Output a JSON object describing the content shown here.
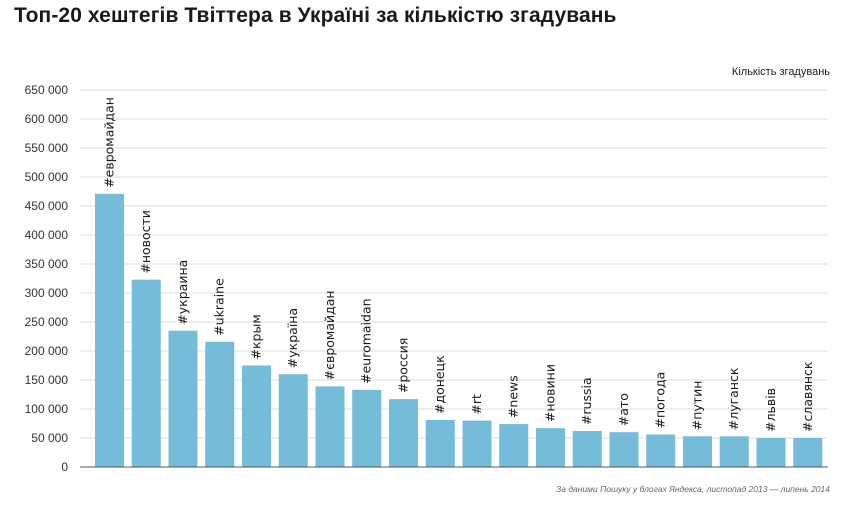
{
  "chart_data": {
    "type": "bar",
    "title": "Топ-20 хештегів Твіттера в Україні за кількістю згадувань",
    "xlabel": "",
    "ylabel": "Кількість згадувань",
    "source": "За даними Пошуку у блогах Яндекса, листопад 2013 — липень 2014",
    "ylim": [
      0,
      650000
    ],
    "yticks": [
      "0",
      "50 000",
      "100 000",
      "150 000",
      "200 000",
      "250 000",
      "300 000",
      "350 000",
      "400 000",
      "450 000",
      "500 000",
      "550 000",
      "600 000",
      "650 000"
    ],
    "categories": [
      "#евромайдан",
      "#новости",
      "#украина",
      "#ukraine",
      "#крым",
      "#україна",
      "#євромайдан",
      "#euromaidan",
      "#россия",
      "#донецк",
      "#rt",
      "#news",
      "#новини",
      "#russia",
      "#ато",
      "#погода",
      "#путин",
      "#луганск",
      "#львів",
      "#славянск"
    ],
    "values": [
      471000,
      323000,
      235000,
      216000,
      175000,
      160000,
      139000,
      133000,
      117000,
      81000,
      80000,
      74000,
      67000,
      62000,
      60000,
      56000,
      53000,
      53000,
      50000,
      50000
    ],
    "grid": true,
    "colors": {
      "bar": "#74bcd8",
      "grid": "#dcdcdc",
      "axis": "#555555"
    }
  }
}
